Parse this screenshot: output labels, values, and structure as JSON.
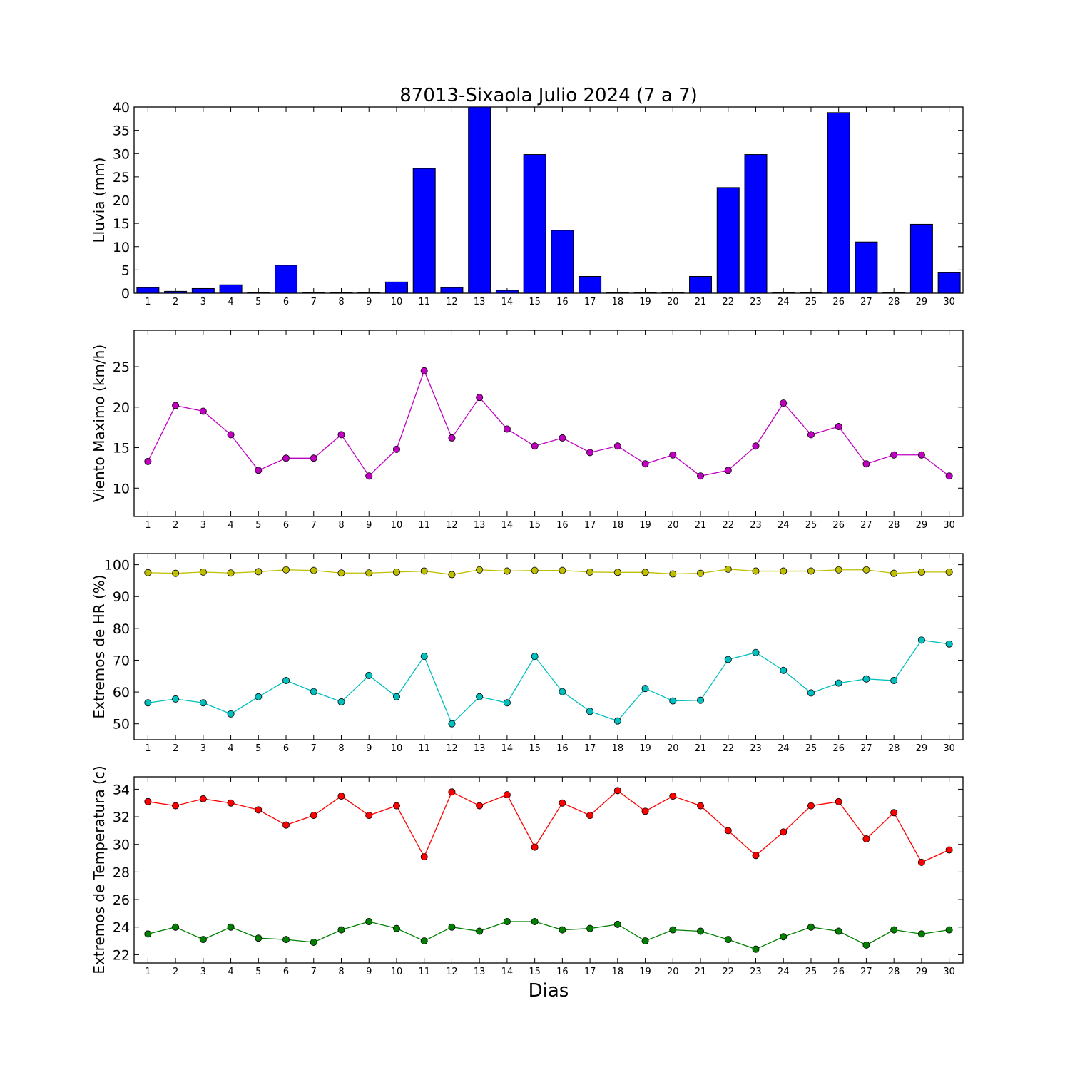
{
  "title": "87013-Sixaola Julio 2024  (7 a 7)",
  "xlabel": "Dias",
  "chart_data": [
    {
      "type": "bar",
      "ylabel": "Lluvia (mm)",
      "categories": [
        "1",
        "2",
        "3",
        "4",
        "5",
        "6",
        "7",
        "8",
        "9",
        "10",
        "11",
        "12",
        "13",
        "14",
        "15",
        "16",
        "17",
        "18",
        "19",
        "20",
        "21",
        "22",
        "23",
        "24",
        "25",
        "26",
        "27",
        "28",
        "29",
        "30"
      ],
      "ylim": [
        0,
        40
      ],
      "yticks": [
        0,
        5,
        10,
        15,
        20,
        25,
        30,
        35,
        40
      ],
      "series": [
        {
          "color": "#0000ff",
          "values": [
            1.2,
            0.4,
            1.0,
            1.8,
            0.0,
            6.0,
            0.1,
            0.0,
            0.0,
            2.4,
            26.8,
            1.2,
            40.0,
            0.6,
            29.8,
            13.5,
            3.6,
            0.1,
            0.0,
            0.0,
            3.6,
            22.7,
            29.8,
            0.1,
            0.0,
            38.8,
            11.0,
            0.0,
            14.8,
            4.4
          ]
        }
      ]
    },
    {
      "type": "line",
      "ylabel": "Viento Maximo (km/h)",
      "categories": [
        "1",
        "2",
        "3",
        "4",
        "5",
        "6",
        "7",
        "8",
        "9",
        "10",
        "11",
        "12",
        "13",
        "14",
        "15",
        "16",
        "17",
        "18",
        "19",
        "20",
        "21",
        "22",
        "23",
        "24",
        "25",
        "26",
        "27",
        "28",
        "29",
        "30"
      ],
      "ylim": [
        6.5,
        29.5
      ],
      "yticks": [
        10,
        15,
        20,
        25
      ],
      "series": [
        {
          "color": "#bf00bf",
          "values": [
            13.3,
            20.2,
            19.5,
            16.6,
            12.2,
            13.7,
            13.7,
            16.6,
            11.5,
            14.8,
            24.5,
            16.2,
            21.2,
            17.3,
            15.2,
            16.2,
            14.4,
            15.2,
            13.0,
            14.1,
            11.5,
            12.2,
            15.2,
            20.5,
            16.6,
            17.6,
            13.0,
            14.1,
            14.1,
            11.5
          ]
        }
      ]
    },
    {
      "type": "line",
      "ylabel": "Extremos de HR (%)",
      "categories": [
        "1",
        "2",
        "3",
        "4",
        "5",
        "6",
        "7",
        "8",
        "9",
        "10",
        "11",
        "12",
        "13",
        "14",
        "15",
        "16",
        "17",
        "18",
        "19",
        "20",
        "21",
        "22",
        "23",
        "24",
        "25",
        "26",
        "27",
        "28",
        "29",
        "30"
      ],
      "ylim": [
        45,
        103.5
      ],
      "yticks": [
        50,
        60,
        70,
        80,
        90,
        100
      ],
      "series": [
        {
          "color": "#bfbf00",
          "values": [
            97.5,
            97.3,
            97.7,
            97.4,
            97.8,
            98.4,
            98.2,
            97.4,
            97.4,
            97.7,
            98.0,
            96.9,
            98.4,
            98.0,
            98.2,
            98.2,
            97.7,
            97.6,
            97.6,
            97.1,
            97.3,
            98.6,
            98.0,
            98.0,
            98.0,
            98.4,
            98.4,
            97.3,
            97.7,
            97.7
          ]
        },
        {
          "color": "#00bfbf",
          "values": [
            56.6,
            57.8,
            56.6,
            53.1,
            58.5,
            63.6,
            60.1,
            56.9,
            65.2,
            58.5,
            71.2,
            50.0,
            58.5,
            56.6,
            71.2,
            60.1,
            53.9,
            50.9,
            61.1,
            57.2,
            57.4,
            70.2,
            72.4,
            66.8,
            59.7,
            62.8,
            64.1,
            63.6,
            76.3,
            75.1
          ]
        }
      ]
    },
    {
      "type": "line",
      "ylabel": "Extremos de Temperatura (c)",
      "categories": [
        "1",
        "2",
        "3",
        "4",
        "5",
        "6",
        "7",
        "8",
        "9",
        "10",
        "11",
        "12",
        "13",
        "14",
        "15",
        "16",
        "17",
        "18",
        "19",
        "20",
        "21",
        "22",
        "23",
        "24",
        "25",
        "26",
        "27",
        "28",
        "29",
        "30"
      ],
      "ylim": [
        21.4,
        34.9
      ],
      "yticks": [
        22,
        24,
        26,
        28,
        30,
        32,
        34
      ],
      "series": [
        {
          "color": "#ff0000",
          "values": [
            33.1,
            32.8,
            33.3,
            33.0,
            32.5,
            31.4,
            32.1,
            33.5,
            32.1,
            32.8,
            29.1,
            33.8,
            32.8,
            33.6,
            29.8,
            33.0,
            32.1,
            33.9,
            32.4,
            33.5,
            32.8,
            31.0,
            29.2,
            30.9,
            32.8,
            33.1,
            30.4,
            32.3,
            28.7,
            29.6
          ]
        },
        {
          "color": "#007f00",
          "values": [
            23.5,
            24.0,
            23.1,
            24.0,
            23.2,
            23.1,
            22.9,
            23.8,
            24.4,
            23.9,
            23.0,
            24.0,
            23.7,
            24.4,
            24.4,
            23.8,
            23.9,
            24.2,
            23.0,
            23.8,
            23.7,
            23.1,
            22.4,
            23.3,
            24.0,
            23.7,
            22.7,
            23.8,
            23.5,
            23.8
          ]
        }
      ]
    }
  ]
}
